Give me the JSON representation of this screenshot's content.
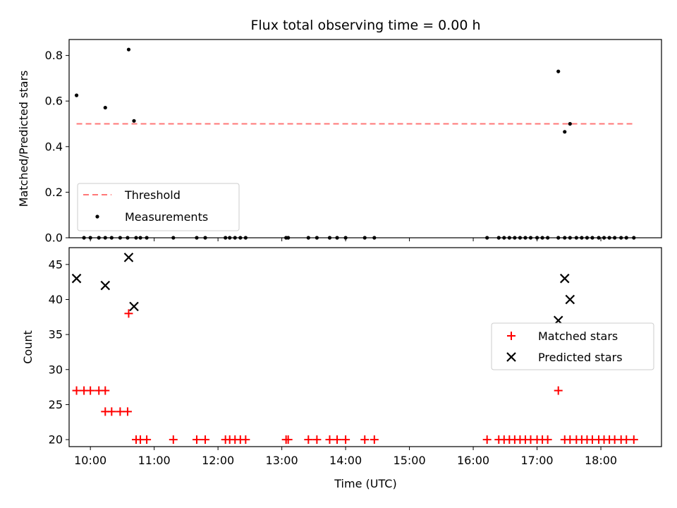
{
  "chart_data": [
    {
      "type": "scatter",
      "title": "Flux total observing time = 0.00 h",
      "xlabel": "",
      "ylabel": "Matched/Predicted stars",
      "ylim": [
        0,
        0.87
      ],
      "xlim": [
        "09:40",
        "18:57"
      ],
      "yticks": [
        "0.0",
        "0.2",
        "0.4",
        "0.6",
        "0.8"
      ],
      "legend_position": "lower-left",
      "threshold": {
        "name": "Threshold",
        "value": 0.5,
        "x_range": [
          "09:47",
          "18:31"
        ],
        "color": "#ff7777",
        "style": "dashed"
      },
      "series": [
        {
          "name": "Measurements",
          "color": "#000000",
          "x": [
            "09:47",
            "09:54",
            "10:00",
            "10:08",
            "10:14",
            "10:20",
            "10:28",
            "10:35",
            "10:43",
            "10:47",
            "10:53",
            "11:18",
            "11:40",
            "11:48",
            "12:07",
            "12:11",
            "12:16",
            "12:21",
            "12:26",
            "13:04",
            "13:06",
            "13:25",
            "13:33",
            "13:45",
            "13:52",
            "14:00",
            "14:18",
            "14:27",
            "16:13",
            "16:24",
            "16:29",
            "16:34",
            "16:39",
            "16:44",
            "16:49",
            "16:54",
            "17:00",
            "17:05",
            "17:10",
            "17:20",
            "17:26",
            "17:31",
            "17:37",
            "17:42",
            "17:47",
            "17:52",
            "17:58",
            "18:03",
            "18:08",
            "18:13",
            "18:19",
            "18:24",
            "18:31",
            "10:14",
            "10:36",
            "10:41",
            "17:20",
            "17:26",
            "17:31"
          ],
          "y": [
            0.625,
            0,
            0,
            0,
            0,
            0,
            0,
            0,
            0,
            0,
            0,
            0,
            0,
            0,
            0,
            0,
            0,
            0,
            0,
            0,
            0,
            0,
            0,
            0,
            0,
            0,
            0,
            0,
            0,
            0,
            0,
            0,
            0,
            0,
            0,
            0,
            0,
            0,
            0,
            0,
            0,
            0,
            0,
            0,
            0,
            0,
            0,
            0,
            0,
            0,
            0,
            0,
            0,
            0.571,
            0.826,
            0.513,
            0.73,
            0.465,
            0.5
          ]
        }
      ]
    },
    {
      "type": "scatter",
      "title": "",
      "xlabel": "Time (UTC)",
      "ylabel": "Count",
      "ylim": [
        19,
        47.4
      ],
      "xlim": [
        "09:40",
        "18:57"
      ],
      "xticks": [
        "10:00",
        "11:00",
        "12:00",
        "13:00",
        "14:00",
        "15:00",
        "16:00",
        "17:00",
        "18:00"
      ],
      "yticks": [
        "20",
        "25",
        "30",
        "35",
        "40",
        "45"
      ],
      "legend_position": "center-right",
      "series": [
        {
          "name": "Matched stars",
          "marker": "+",
          "color": "#ff0000",
          "x": [
            "09:47",
            "09:54",
            "10:00",
            "10:08",
            "10:14",
            "10:14",
            "10:20",
            "10:28",
            "10:35",
            "10:43",
            "10:47",
            "10:53",
            "11:18",
            "11:40",
            "11:48",
            "12:07",
            "12:11",
            "12:16",
            "12:21",
            "12:26",
            "13:04",
            "13:06",
            "13:25",
            "13:33",
            "13:45",
            "13:52",
            "14:00",
            "14:18",
            "14:27",
            "16:13",
            "16:24",
            "16:29",
            "16:34",
            "16:39",
            "16:44",
            "16:49",
            "16:54",
            "17:00",
            "17:05",
            "17:10",
            "17:20",
            "17:26",
            "17:31",
            "17:37",
            "17:42",
            "17:47",
            "17:52",
            "17:58",
            "18:03",
            "18:08",
            "18:13",
            "18:19",
            "18:24",
            "18:31",
            "10:36"
          ],
          "y": [
            27,
            27,
            27,
            27,
            27,
            24,
            24,
            24,
            24,
            20,
            20,
            20,
            20,
            20,
            20,
            20,
            20,
            20,
            20,
            20,
            20,
            20,
            20,
            20,
            20,
            20,
            20,
            20,
            20,
            20,
            20,
            20,
            20,
            20,
            20,
            20,
            20,
            20,
            20,
            20,
            27,
            20,
            20,
            20,
            20,
            20,
            20,
            20,
            20,
            20,
            20,
            20,
            20,
            20,
            38
          ]
        },
        {
          "name": "Predicted stars",
          "marker": "x",
          "color": "#000000",
          "x": [
            "09:47",
            "10:14",
            "10:36",
            "10:41",
            "17:20",
            "17:26",
            "17:31"
          ],
          "y": [
            43,
            42,
            46,
            39,
            37,
            43,
            40
          ]
        }
      ]
    }
  ]
}
